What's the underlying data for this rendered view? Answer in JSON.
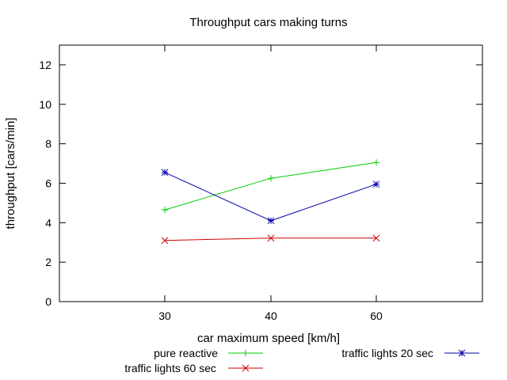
{
  "chart_data": {
    "type": "line",
    "title": "Throughput cars making turns",
    "xlabel": "car maximum speed [km/h]",
    "ylabel": "throughput [cars/min]",
    "categories": [
      "30",
      "40",
      "60"
    ],
    "yticks": [
      "0",
      "2",
      "4",
      "6",
      "8",
      "10",
      "12"
    ],
    "ylim": [
      0,
      13
    ],
    "grid": false,
    "legend_position": "bottom",
    "series": [
      {
        "name": "pure reactive",
        "values": [
          4.65,
          6.25,
          7.05
        ],
        "color": "#00cc00",
        "marker": "plus"
      },
      {
        "name": "traffic lights 60 sec",
        "values": [
          3.1,
          3.22,
          3.22
        ],
        "color": "#cc0000",
        "marker": "cross"
      },
      {
        "name": "traffic lights 20 sec",
        "values": [
          6.55,
          4.1,
          5.95
        ],
        "color": "#0000aa",
        "marker": "star"
      }
    ]
  }
}
